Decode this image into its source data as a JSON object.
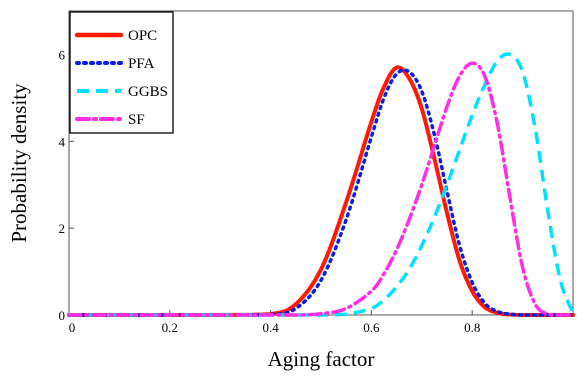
{
  "chart_data": {
    "type": "line",
    "xlabel": "Aging factor",
    "ylabel": "Probability density",
    "xlim": [
      0,
      1
    ],
    "ylim": [
      0,
      7
    ],
    "x_ticks": [
      0,
      0.2,
      0.4,
      0.6,
      0.8
    ],
    "y_ticks": [
      0,
      2,
      4,
      6
    ],
    "x_tick_labels": [
      "0",
      "0.2",
      "0.4",
      "0.6",
      "0.8"
    ],
    "y_tick_labels": [
      "0",
      "2",
      "4",
      "6"
    ],
    "grid": false,
    "legend_position": "top-left",
    "x": [
      0,
      0.1,
      0.2,
      0.3,
      0.4,
      0.45,
      0.5,
      0.55,
      0.6,
      0.625,
      0.65,
      0.675,
      0.7,
      0.725,
      0.75,
      0.775,
      0.8,
      0.825,
      0.85,
      0.875,
      0.9,
      0.925,
      0.95,
      0.975,
      1.0
    ],
    "series": [
      {
        "name": "OPC",
        "color": "#ff1a00",
        "dash": "solid",
        "values": [
          0,
          0,
          0,
          0,
          0.02,
          0.25,
          1.05,
          2.6,
          4.45,
          5.25,
          5.7,
          5.45,
          4.75,
          3.6,
          2.35,
          1.25,
          0.55,
          0.18,
          0.05,
          0.01,
          0,
          0,
          0,
          0,
          0
        ]
      },
      {
        "name": "PFA",
        "color": "#0a1ee6",
        "dash": "dot",
        "values": [
          0,
          0,
          0,
          0,
          0.01,
          0.15,
          0.8,
          2.2,
          4.1,
          5.0,
          5.55,
          5.6,
          5.15,
          4.15,
          2.85,
          1.6,
          0.75,
          0.27,
          0.08,
          0.02,
          0,
          0,
          0,
          0,
          0
        ]
      },
      {
        "name": "GGBS",
        "color": "#00e1ff",
        "dash": "dash",
        "values": [
          0,
          0,
          0,
          0,
          0,
          0,
          0,
          0.02,
          0.15,
          0.35,
          0.65,
          1.05,
          1.6,
          2.25,
          3.0,
          3.8,
          4.6,
          5.3,
          5.85,
          6.0,
          5.6,
          4.3,
          2.4,
          0.8,
          0.05
        ]
      },
      {
        "name": "SF",
        "color": "#ff2ee0",
        "dash": "dashdot",
        "values": [
          0,
          0,
          0,
          0,
          0,
          0,
          0.03,
          0.15,
          0.55,
          0.95,
          1.5,
          2.2,
          3.0,
          3.9,
          4.8,
          5.5,
          5.8,
          5.5,
          4.4,
          2.7,
          1.1,
          0.25,
          0.02,
          0,
          0
        ]
      }
    ]
  }
}
